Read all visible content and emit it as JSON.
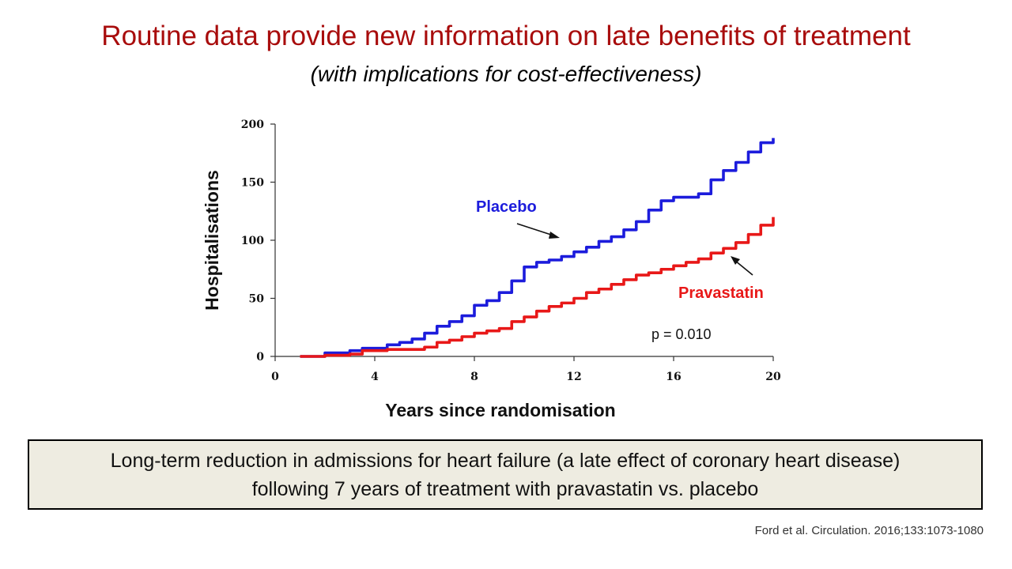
{
  "slide": {
    "title": "Routine data provide new information on late benefits of treatment",
    "subtitle": "(with implications for cost-effectiveness)",
    "caption_line1": "Long-term reduction in admissions for heart failure (a late effect of coronary heart disease)",
    "caption_line2": "following 7 years of treatment with pravastatin vs. placebo",
    "citation": "Ford et al. Circulation. 2016;133:1073-1080"
  },
  "chart_data": {
    "type": "line",
    "title": "",
    "xlabel": "Years since randomisation",
    "ylabel": "Hospitalisations",
    "xlim": [
      0,
      20
    ],
    "ylim": [
      0,
      200
    ],
    "xticks": [
      0,
      4,
      8,
      12,
      16,
      20
    ],
    "xtick_labels": [
      "0",
      "4",
      "8",
      "12",
      "16",
      "20"
    ],
    "yticks": [
      0,
      50,
      100,
      150,
      200
    ],
    "ytick_labels": [
      "0",
      "50",
      "100",
      "150",
      "200"
    ],
    "grid": false,
    "series": [
      {
        "name": "Placebo",
        "color": "#1c1cdc",
        "x": [
          1,
          2,
          3,
          3.5,
          4.5,
          5,
          5.5,
          6,
          6.5,
          7,
          7.5,
          8,
          8.5,
          9,
          9.5,
          10,
          10.5,
          11,
          11.5,
          12,
          12.5,
          13,
          13.5,
          14,
          14.5,
          15,
          15.5,
          16,
          16.5,
          17,
          17.5,
          18,
          18.5,
          19,
          19.5,
          20
        ],
        "values": [
          0,
          3,
          5,
          7,
          10,
          12,
          15,
          20,
          26,
          30,
          35,
          44,
          48,
          55,
          65,
          77,
          81,
          83,
          86,
          90,
          94,
          99,
          103,
          109,
          116,
          126,
          134,
          137,
          137,
          140,
          152,
          160,
          167,
          176,
          184,
          188
        ]
      },
      {
        "name": "Pravastatin",
        "color": "#e81818",
        "x": [
          1,
          2,
          3,
          3.5,
          4.5,
          5,
          5.5,
          6,
          6.5,
          7,
          7.5,
          8,
          8.5,
          9,
          9.5,
          10,
          10.5,
          11,
          11.5,
          12,
          12.5,
          13,
          13.5,
          14,
          14.5,
          15,
          15.5,
          16,
          16.5,
          17,
          17.5,
          18,
          18.5,
          19,
          19.5,
          20
        ],
        "values": [
          0,
          1,
          2,
          5,
          6,
          6,
          6,
          8,
          12,
          14,
          17,
          20,
          22,
          24,
          30,
          34,
          39,
          43,
          46,
          50,
          55,
          58,
          62,
          66,
          70,
          72,
          75,
          78,
          81,
          84,
          89,
          93,
          98,
          105,
          113,
          120
        ]
      }
    ],
    "annotations": [
      {
        "text": "Placebo"
      },
      {
        "text": "Pravastatin"
      },
      {
        "text": "p = 0.010"
      }
    ]
  }
}
